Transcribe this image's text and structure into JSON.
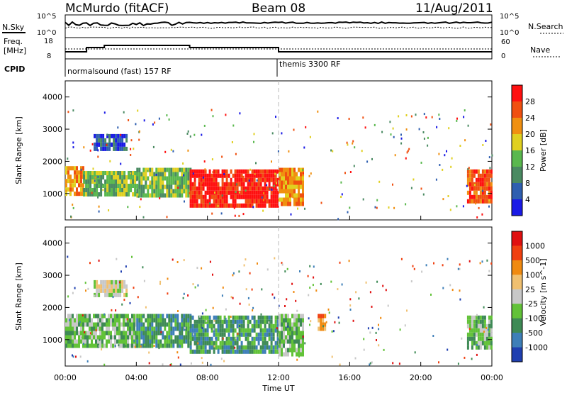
{
  "header": {
    "station": "McMurdo (fitACF)",
    "beam": "Beam 08",
    "date": "11/Aug/2011"
  },
  "summary_panel": {
    "left_top_label": "N.Sky",
    "right_top_label": "N.Search",
    "y_top_ticks_left": [
      "10^5",
      "10^0"
    ],
    "y_top_ticks_right": [
      "10^5",
      "10^0"
    ],
    "freq_label": "Freq.",
    "freq_unit": "[MHz]",
    "freq_ticks": [
      "18",
      "8"
    ],
    "nave_label": "Nave",
    "nave_ticks": [
      "60",
      "0"
    ],
    "cpid_label": "CPID",
    "modes": [
      {
        "name": "normalsound (fast) 157 RF",
        "start_hour": 0
      },
      {
        "name": "themis 3300 RF",
        "start_hour": 12
      }
    ]
  },
  "time_axis": {
    "title": "Time UT",
    "ticks": [
      "00:00",
      "04:00",
      "08:00",
      "12:00",
      "16:00",
      "20:00",
      "00:00"
    ],
    "range_hours": [
      0,
      24
    ]
  },
  "chart_data": [
    {
      "type": "heatmap",
      "ylabel": "Slant Range [km]",
      "ylim": [
        180,
        4500
      ],
      "yticks": [
        1000,
        2000,
        3000,
        4000
      ],
      "colorbar_label": "Power [dB]",
      "colorbar_ticks": [
        "28",
        "24",
        "20",
        "16",
        "12",
        "8",
        "4"
      ],
      "colors": [
        "#1a1ae6",
        "#2f5fb0",
        "#4a8a62",
        "#5ab84e",
        "#e0d020",
        "#f09010",
        "#f05010",
        "#ff1010"
      ],
      "regions": [
        {
          "t0": 0.0,
          "t1": 1.0,
          "r0": 1050,
          "r1": 1850,
          "level": 5
        },
        {
          "t0": 1.0,
          "t1": 4.0,
          "r0": 950,
          "r1": 1700,
          "level": 3
        },
        {
          "t0": 4.0,
          "t1": 7.0,
          "r0": 900,
          "r1": 1800,
          "level": 3
        },
        {
          "t0": 7.0,
          "t1": 12.0,
          "r0": 650,
          "r1": 1750,
          "level": 7
        },
        {
          "t0": 12.0,
          "t1": 13.4,
          "r0": 700,
          "r1": 1800,
          "level": 5
        },
        {
          "t0": 1.6,
          "t1": 3.4,
          "r0": 2450,
          "r1": 2850,
          "level": 1
        },
        {
          "t0": 22.6,
          "t1": 24.0,
          "r0": 800,
          "r1": 1750,
          "level": 6
        }
      ]
    },
    {
      "type": "heatmap",
      "ylabel": "Slant Range [km]",
      "ylim": [
        180,
        4500
      ],
      "yticks": [
        1000,
        2000,
        3000,
        4000
      ],
      "colorbar_label": "Velocity [m s^-1]",
      "colorbar_ticks": [
        "1000",
        "500",
        "100",
        "25",
        "-25",
        "-100",
        "-500",
        "-1000"
      ],
      "colors": [
        "#1f3fb0",
        "#3e7fb8",
        "#3e8a55",
        "#62c238",
        "#c8c8c8",
        "#f0c070",
        "#f08a10",
        "#f04010",
        "#e01010"
      ],
      "regions": [
        {
          "t0": 0.0,
          "t1": 4.0,
          "r0": 850,
          "r1": 1800,
          "level": 3
        },
        {
          "t0": 4.0,
          "t1": 7.0,
          "r0": 850,
          "r1": 1800,
          "level": 2
        },
        {
          "t0": 7.0,
          "t1": 12.0,
          "r0": 600,
          "r1": 1750,
          "level": 2
        },
        {
          "t0": 12.0,
          "t1": 13.4,
          "r0": 600,
          "r1": 1800,
          "level": 3
        },
        {
          "t0": 1.6,
          "t1": 3.4,
          "r0": 2450,
          "r1": 2850,
          "level": 4
        },
        {
          "t0": 14.2,
          "t1": 14.6,
          "r0": 1300,
          "r1": 1800,
          "level": 6
        },
        {
          "t0": 22.6,
          "t1": 24.0,
          "r0": 800,
          "r1": 1750,
          "level": 3
        }
      ]
    }
  ]
}
